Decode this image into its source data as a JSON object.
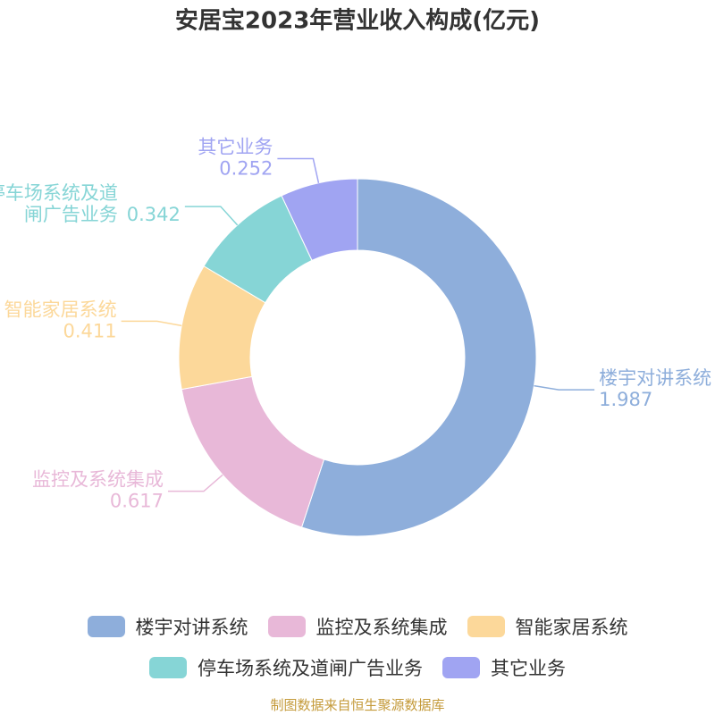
{
  "chart_data": {
    "type": "donut",
    "title": "安居宝2023年营业收入构成(亿元)",
    "categories": [
      "楼宇对讲系统",
      "监控及系统集成",
      "智能家居系统",
      "停车场系统及道闸广告业务",
      "其它业务"
    ],
    "values": [
      1.987,
      0.617,
      0.411,
      0.342,
      0.252
    ],
    "colors": [
      "#8eaedb",
      "#e8b8d8",
      "#fcd89a",
      "#86d5d6",
      "#a0a4f2"
    ],
    "legend": "bottom",
    "source": "制图数据来自恒生聚源数据库"
  }
}
